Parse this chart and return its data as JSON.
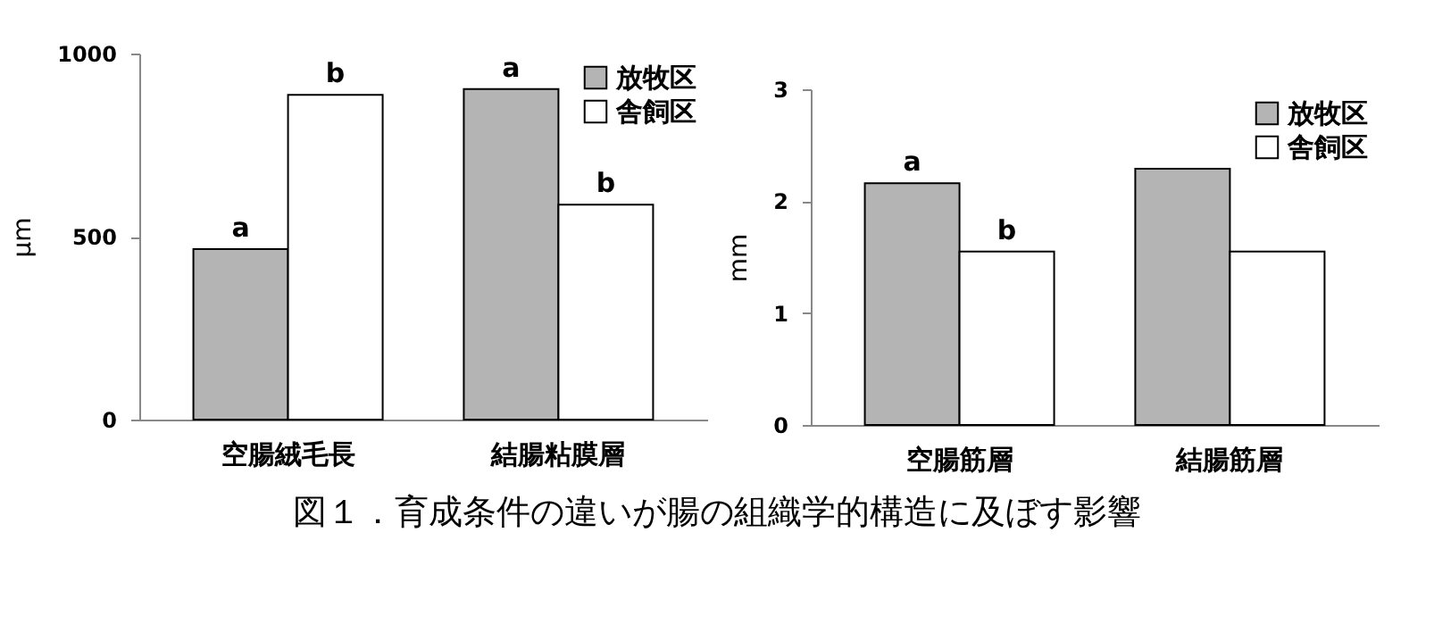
{
  "chart_data": [
    {
      "type": "bar",
      "ylabel": "μm",
      "categories": [
        "空腸絨毛長",
        "結腸粘膜層"
      ],
      "series": [
        {
          "name": "放牧区",
          "color": "#b4b4b4",
          "values": [
            466,
            903
          ]
        },
        {
          "name": "舎飼区",
          "color": "#ffffff",
          "values": [
            887,
            587
          ]
        }
      ],
      "ylim": [
        0,
        1000
      ],
      "yticks": [
        0,
        500,
        1000
      ],
      "legend": "top right",
      "grid": false,
      "annotations": [
        {
          "text": "a",
          "x": "空腸絨毛長",
          "y": 466
        },
        {
          "text": "b",
          "x": "空腸絨毛長",
          "y": 887
        },
        {
          "text": "a",
          "x": "結腸粘膜層",
          "y": 903
        },
        {
          "text": "b",
          "x": "結腸粘膜層",
          "y": 587
        },
        "図１．育成条件の違いが腸の組織学的構造に及ぼす影響"
      ]
    },
    {
      "type": "bar",
      "ylabel": "mm",
      "categories": [
        "空腸筋層",
        "結腸筋層"
      ],
      "series": [
        {
          "name": "放牧区",
          "color": "#b4b4b4",
          "values": [
            2.16,
            2.29
          ]
        },
        {
          "name": "舎飼区",
          "color": "#ffffff",
          "values": [
            1.55,
            1.55
          ]
        }
      ],
      "ylim": [
        0,
        3
      ],
      "yticks": [
        0,
        1,
        2,
        3
      ],
      "legend": "top right",
      "grid": false,
      "annotations": [
        {
          "text": "a",
          "x": "空腸筋層",
          "y": 2.16
        },
        {
          "text": "b",
          "x": "空腸筋層",
          "y": 1.55
        }
      ]
    }
  ]
}
